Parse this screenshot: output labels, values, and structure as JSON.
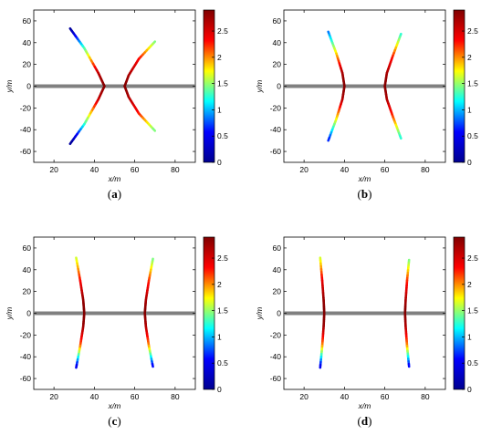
{
  "colors": {
    "background": "#ffffff",
    "frame": "#000000",
    "axis_line": "#808080",
    "colormap": [
      "#00008f",
      "#0000ff",
      "#00ffff",
      "#ffff00",
      "#ff0000",
      "#800000"
    ]
  },
  "chart_data": [
    {
      "type": "line",
      "panel_label": "(a)",
      "panel_letter": "a",
      "xlabel": "x/m",
      "ylabel": "y/m",
      "xlim": [
        10,
        90
      ],
      "ylim": [
        -70,
        70
      ],
      "xticks": [
        20,
        40,
        60,
        80
      ],
      "yticks": [
        -60,
        -40,
        -20,
        0,
        20,
        40,
        60
      ],
      "colorbar": {
        "range": [
          0,
          2.9
        ],
        "ticks": [
          0,
          0.5,
          1,
          1.5,
          2,
          2.5
        ]
      },
      "reference_line": {
        "y": 0
      },
      "series": [
        {
          "x": [
            28,
            35,
            42,
            45,
            42,
            35,
            28
          ],
          "y": [
            53,
            35,
            12,
            0,
            -12,
            -35,
            -53
          ],
          "c": [
            0,
            1.3,
            2.6,
            2.9,
            2.6,
            1.3,
            0
          ]
        },
        {
          "x": [
            70,
            62,
            57,
            55,
            57,
            62,
            70
          ],
          "y": [
            41,
            25,
            10,
            0,
            -10,
            -25,
            -41
          ],
          "c": [
            1.4,
            2.3,
            2.7,
            2.9,
            2.7,
            2.3,
            1.4
          ]
        }
      ]
    },
    {
      "type": "line",
      "panel_label": "(b)",
      "panel_letter": "b",
      "xlabel": "x/m",
      "ylabel": "y/m",
      "xlim": [
        10,
        90
      ],
      "ylim": [
        -70,
        70
      ],
      "xticks": [
        20,
        40,
        60,
        80
      ],
      "yticks": [
        -60,
        -40,
        -20,
        0,
        20,
        40,
        60
      ],
      "colorbar": {
        "range": [
          0,
          2.9
        ],
        "ticks": [
          0,
          0.5,
          1,
          1.5,
          2,
          2.5
        ]
      },
      "reference_line": {
        "y": 0
      },
      "series": [
        {
          "x": [
            32,
            36,
            39,
            40,
            39,
            36,
            32
          ],
          "y": [
            50,
            30,
            12,
            0,
            -12,
            -30,
            -50
          ],
          "c": [
            0.8,
            1.8,
            2.7,
            2.9,
            2.7,
            1.8,
            0.6
          ]
        },
        {
          "x": [
            68,
            64,
            61,
            60,
            61,
            64,
            68
          ],
          "y": [
            48,
            28,
            12,
            0,
            -12,
            -28,
            -48
          ],
          "c": [
            1.2,
            2.2,
            2.7,
            2.9,
            2.7,
            2.2,
            1.2
          ]
        }
      ]
    },
    {
      "type": "line",
      "panel_label": "(c)",
      "panel_letter": "c",
      "xlabel": "x/m",
      "ylabel": "y/m",
      "xlim": [
        10,
        90
      ],
      "ylim": [
        -70,
        70
      ],
      "xticks": [
        20,
        40,
        60,
        80
      ],
      "yticks": [
        -60,
        -40,
        -20,
        0,
        20,
        40,
        60
      ],
      "colorbar": {
        "range": [
          0,
          2.9
        ],
        "ticks": [
          0,
          0.5,
          1,
          1.5,
          2,
          2.5
        ]
      },
      "reference_line": {
        "y": 0
      },
      "series": [
        {
          "x": [
            31,
            33,
            34.5,
            35,
            34.5,
            33,
            31
          ],
          "y": [
            51,
            30,
            12,
            0,
            -12,
            -30,
            -50
          ],
          "c": [
            1.6,
            2.3,
            2.8,
            2.9,
            2.8,
            2.1,
            0.4
          ]
        },
        {
          "x": [
            69,
            67,
            65.5,
            65,
            65.5,
            67,
            69
          ],
          "y": [
            50,
            30,
            12,
            0,
            -12,
            -30,
            -49
          ],
          "c": [
            1.4,
            2.2,
            2.7,
            2.9,
            2.7,
            2.0,
            0.5
          ]
        }
      ]
    },
    {
      "type": "line",
      "panel_label": "(d)",
      "panel_letter": "d",
      "xlabel": "x/m",
      "ylabel": "y/m",
      "xlim": [
        10,
        90
      ],
      "ylim": [
        -70,
        70
      ],
      "xticks": [
        20,
        40,
        60,
        80
      ],
      "yticks": [
        -60,
        -40,
        -20,
        0,
        20,
        40,
        60
      ],
      "colorbar": {
        "range": [
          0,
          2.9
        ],
        "ticks": [
          0,
          0.5,
          1,
          1.5,
          2,
          2.5
        ]
      },
      "reference_line": {
        "y": 0
      },
      "series": [
        {
          "x": [
            28,
            29,
            29.7,
            30,
            29.7,
            29,
            28
          ],
          "y": [
            51,
            30,
            12,
            0,
            -12,
            -30,
            -50
          ],
          "c": [
            1.6,
            2.4,
            2.8,
            2.9,
            2.8,
            2.0,
            0.4
          ]
        },
        {
          "x": [
            72,
            71,
            70.3,
            70,
            70.3,
            71,
            72
          ],
          "y": [
            49,
            30,
            12,
            0,
            -12,
            -30,
            -49
          ],
          "c": [
            1.4,
            2.2,
            2.7,
            2.9,
            2.7,
            2.0,
            0.5
          ]
        }
      ]
    }
  ]
}
